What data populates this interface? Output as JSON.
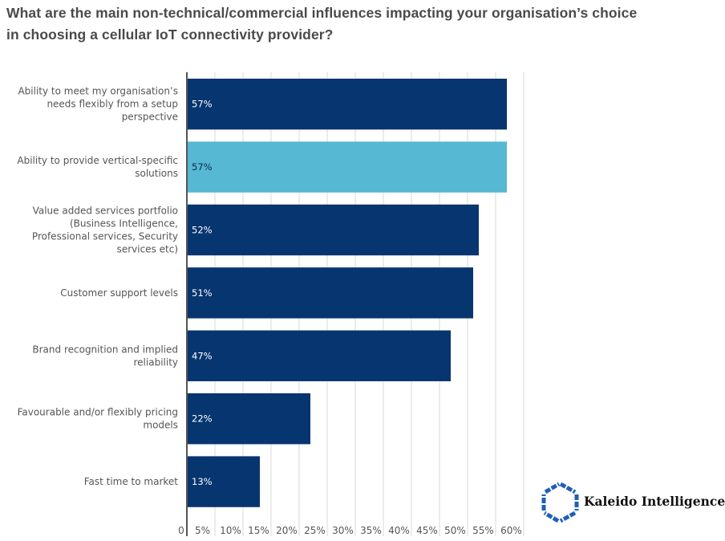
{
  "title_lines": [
    "What are the main non-technical/commercial influences impacting your organisation’s choice",
    "in choosing a cellular IoT connectivity provider?"
  ],
  "chart_data": {
    "type": "bar",
    "orientation": "horizontal",
    "title": "What are the main non-technical/commercial influences impacting your organisation’s choice in choosing a cellular IoT connectivity provider?",
    "xlabel": "",
    "ylabel": "",
    "xlim": [
      0,
      60
    ],
    "grid": true,
    "categories": [
      "Ability to meet my organisation’s needs flexibly from a setup perspective",
      "Ability to provide vertical-specific solutions",
      "Value added services portfolio (Business Intelligence, Professional services, Security services etc)",
      "Customer support levels",
      "Brand recognition and implied reliability",
      "Favourable and/or flexibly pricing models",
      "Fast time to market"
    ],
    "category_label_lines": [
      [
        "Ability to meet my organisation’s",
        "needs flexibly from a setup",
        "perspective"
      ],
      [
        "Ability to provide vertical-specific",
        "solutions"
      ],
      [
        "Value added services portfolio",
        "(Business Intelligence,",
        "Professional services, Security",
        "services etc)"
      ],
      [
        "Customer support levels"
      ],
      [
        "Brand recognition and implied",
        "reliability"
      ],
      [
        "Favourable and/or flexibly pricing",
        "models"
      ],
      [
        "Fast time to market"
      ]
    ],
    "values": [
      57,
      57,
      52,
      51,
      47,
      22,
      13
    ],
    "data_labels": [
      "57%",
      "57%",
      "52%",
      "51%",
      "47%",
      "22%",
      "13%"
    ],
    "highlight_index": 1,
    "colors": {
      "bar": "#07356f",
      "highlight": "#56b8d3",
      "label_on_dark": "#ffffff",
      "label_on_light": "#0b2a4a",
      "grid": "#d9d9d9",
      "axis": "#555555"
    },
    "x_ticks": [
      0,
      5,
      10,
      15,
      20,
      25,
      30,
      35,
      40,
      45,
      50,
      55,
      60
    ],
    "x_tick_labels": [
      "0",
      "5%",
      "10%",
      "15%",
      "20%",
      "25%",
      "30%",
      "35%",
      "40%",
      "45%",
      "50%",
      "55%",
      "60%"
    ],
    "legend": "none"
  },
  "logo": {
    "text": "Kaleido Intelligence",
    "icon": "hexagon-logo-icon",
    "color": "#1f5fb4"
  }
}
